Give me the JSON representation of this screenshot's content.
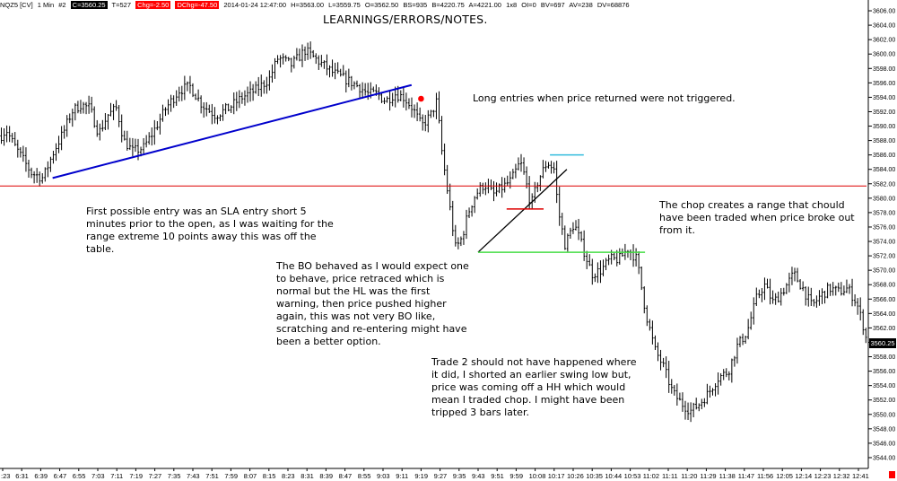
{
  "header": {
    "symbol": "NQZ5 [CV]",
    "interval": "1 Min",
    "chart_no": "#2",
    "close": "C=3560.25",
    "ticks": "T=527",
    "chg": "Chg=-2.50",
    "dchg": "DChg=-47.50",
    "timestamp": "2014-01-24 12:47:00",
    "high": "H=3563.00",
    "low": "L=3559.75",
    "open": "O=3562.50",
    "bars": "BS=935",
    "bid": "B=4220.75",
    "ask": "A=4221.00",
    "sizes": "1x8",
    "oi": "OI=0",
    "bv": "BV=697",
    "av": "AV=238",
    "dv": "DV=68876"
  },
  "title": "LEARNINGS/ERRORS/NOTES.",
  "notes": {
    "note1": "Long entries when price returned were not triggered.",
    "note2": "First possible entry was an SLA entry short 5 minutes prior to the open,  as I was waiting for the range extreme 10 points away this was off the table.",
    "note3": "The BO behaved as I would expect one to behave, price retraced which is normal but the HL was the first warning, then price pushed higher again, this was not very BO like, scratching and re-entering might have been a better option.",
    "note4": "The chop creates a range that chould have been traded when price broke out from it.",
    "note5": "Trade 2 should not have happened where it did, I shorted an earlier swing low but, price was coming off a HH which would mean I traded chop.  I might have been tripped 3 bars later."
  },
  "last_price_label": "3560.25",
  "colors": {
    "bars": "#000000",
    "trendline_blue": "#0000cc",
    "horizontal_red": "#dd0000",
    "range_high_cyan": "#33bbdd",
    "range_low_green": "#44dd44",
    "entry_dot": "#ff0000",
    "header_black_box": "#000000",
    "header_red_box": "#ff0000"
  },
  "chart_data": {
    "type": "ohlc",
    "ylim": [
      3543,
      3607
    ],
    "y_ticks": [
      "3606.00",
      "3604.00",
      "3602.00",
      "3600.00",
      "3598.00",
      "3596.00",
      "3594.00",
      "3592.00",
      "3590.00",
      "3588.00",
      "3586.00",
      "3584.00",
      "3582.00",
      "3580.00",
      "3578.00",
      "3576.00",
      "3574.00",
      "3572.00",
      "3570.00",
      "3568.00",
      "3566.00",
      "3564.00",
      "3562.00",
      "3560.00",
      "3558.00",
      "3556.00",
      "3554.00",
      "3552.00",
      "3550.00",
      "3548.00",
      "3546.00",
      "3544.00"
    ],
    "x_ticks": [
      ":23",
      "6:31",
      "6:39",
      "6:47",
      "6:55",
      "7:03",
      "7:11",
      "7:19",
      "7:27",
      "7:35",
      "7:43",
      "7:51",
      "7:59",
      "8:07",
      "8:15",
      "8:23",
      "8:31",
      "8:39",
      "8:47",
      "8:55",
      "9:03",
      "9:11",
      "9:19",
      "9:27",
      "9:35",
      "9:43",
      "9:51",
      "9:59",
      "10:08",
      "10:17",
      "10:26",
      "10:35",
      "10:44",
      "10:53",
      "11:02",
      "11:11",
      "11:20",
      "11:29",
      "11:38",
      "11:47",
      "11:56",
      "12:05",
      "12:14",
      "12:23",
      "12:32",
      "12:41"
    ],
    "price_path": [
      [
        0,
        3588.5
      ],
      [
        7,
        3589.5
      ],
      [
        15,
        3587.5
      ],
      [
        25,
        3585.5
      ],
      [
        35,
        3583.5
      ],
      [
        48,
        3582.8
      ],
      [
        60,
        3586.5
      ],
      [
        72,
        3589.5
      ],
      [
        80,
        3592.0
      ],
      [
        90,
        3593.0
      ],
      [
        100,
        3592.5
      ],
      [
        110,
        3589.0
      ],
      [
        120,
        3591.5
      ],
      [
        130,
        3592.5
      ],
      [
        138,
        3588.0
      ],
      [
        148,
        3586.5
      ],
      [
        160,
        3587.0
      ],
      [
        170,
        3589.0
      ],
      [
        185,
        3592.5
      ],
      [
        200,
        3595.0
      ],
      [
        212,
        3595.5
      ],
      [
        225,
        3593.0
      ],
      [
        240,
        3591.5
      ],
      [
        255,
        3592.5
      ],
      [
        270,
        3594.0
      ],
      [
        285,
        3595.0
      ],
      [
        300,
        3596.5
      ],
      [
        310,
        3599.5
      ],
      [
        325,
        3598.5
      ],
      [
        340,
        3600.5
      ],
      [
        355,
        3599.0
      ],
      [
        370,
        3597.5
      ],
      [
        385,
        3596.5
      ],
      [
        400,
        3595.5
      ],
      [
        410,
        3594.5
      ],
      [
        420,
        3594.5
      ],
      [
        430,
        3593.5
      ],
      [
        440,
        3594.5
      ],
      [
        450,
        3594.0
      ],
      [
        460,
        3592.5
      ],
      [
        470,
        3590.0
      ],
      [
        480,
        3591.5
      ],
      [
        487,
        3593.5
      ],
      [
        492,
        3587.0
      ],
      [
        500,
        3580.0
      ],
      [
        508,
        3573.0
      ],
      [
        515,
        3574.5
      ],
      [
        522,
        3578.0
      ],
      [
        530,
        3580.5
      ],
      [
        540,
        3582.0
      ],
      [
        550,
        3580.5
      ],
      [
        560,
        3581.5
      ],
      [
        570,
        3582.5
      ],
      [
        580,
        3585.0
      ],
      [
        585,
        3583.0
      ],
      [
        592,
        3579.0
      ],
      [
        600,
        3582.5
      ],
      [
        610,
        3585.0
      ],
      [
        618,
        3584.0
      ],
      [
        622,
        3578.5
      ],
      [
        630,
        3573.5
      ],
      [
        640,
        3576.5
      ],
      [
        650,
        3573.0
      ],
      [
        660,
        3569.5
      ],
      [
        670,
        3570.0
      ],
      [
        680,
        3571.5
      ],
      [
        690,
        3571.5
      ],
      [
        700,
        3573.0
      ],
      [
        710,
        3571.5
      ],
      [
        720,
        3564.0
      ],
      [
        730,
        3559.0
      ],
      [
        740,
        3556.5
      ],
      [
        750,
        3553.0
      ],
      [
        760,
        3551.5
      ],
      [
        770,
        3550.5
      ],
      [
        780,
        3551.5
      ],
      [
        790,
        3553.0
      ],
      [
        800,
        3555.0
      ],
      [
        812,
        3556.0
      ],
      [
        822,
        3559.5
      ],
      [
        833,
        3561.5
      ],
      [
        843,
        3566.0
      ],
      [
        852,
        3568.0
      ],
      [
        862,
        3565.5
      ],
      [
        872,
        3567.0
      ],
      [
        885,
        3569.5
      ],
      [
        895,
        3567.5
      ],
      [
        905,
        3565.0
      ],
      [
        915,
        3566.5
      ],
      [
        925,
        3567.5
      ],
      [
        935,
        3567.0
      ],
      [
        945,
        3567.5
      ],
      [
        955,
        3565.5
      ],
      [
        962,
        3562.5
      ],
      [
        966,
        3560.25
      ]
    ],
    "annotations": {
      "blue_trendline": {
        "from": [
          "6:44",
          3582.8
        ],
        "to": [
          "9:15",
          3595.7
        ]
      },
      "black_trendline": {
        "from": [
          "9:43",
          3572.5
        ],
        "to": [
          "10:23",
          3584.0
        ]
      },
      "red_horizontal": {
        "price": 3581.7
      },
      "cyan_range_high": {
        "price": 3586.0
      },
      "green_range_low": {
        "price": 3572.5
      },
      "small_red_segment": {
        "price": 3578.5
      },
      "entry_dot": {
        "time": "9:19",
        "price": 3593.8
      }
    }
  }
}
